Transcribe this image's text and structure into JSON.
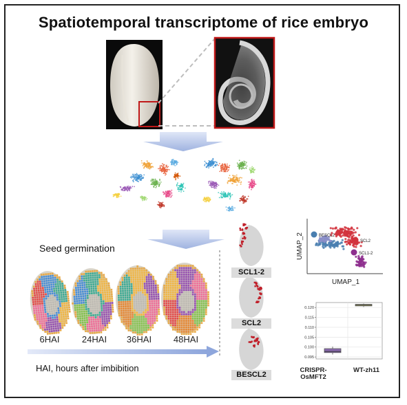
{
  "title": "Spatiotemporal transcriptome of rice embryo",
  "section_label": "Seed germination",
  "time_points": [
    "6HAI",
    "24HAI",
    "36HAI",
    "48HAI"
  ],
  "legend_note": "HAI, hours after imbibition",
  "spatial_panels": [
    "SCL1-2",
    "SCL2",
    "BESCL2"
  ],
  "umap": {
    "xlabel": "UMAP_1",
    "ylabel": "UMAP_2",
    "clusters": [
      {
        "name": "BESCL2",
        "color": "#4a7fb0"
      },
      {
        "name": "SCL2",
        "color": "#d2333d"
      },
      {
        "name": "SCL1-2",
        "color": "#8e2f8e"
      }
    ]
  },
  "chart_data": {
    "type": "box",
    "categories": [
      "CRISPR-\nOsMFT2",
      "WT-zh11"
    ],
    "category_lines": [
      [
        "CRISPR-",
        "OsMFT2"
      ],
      [
        "WT-zh11"
      ]
    ],
    "yticks": [
      0.095,
      0.1,
      0.105,
      0.11,
      0.115,
      0.12
    ],
    "ytick_labels": [
      "0.095",
      "0.100",
      "0.105",
      "0.110",
      "0.115",
      "0.120"
    ],
    "ylim": [
      0.094,
      0.1225
    ],
    "series": [
      {
        "category": "CRISPR-\nOsMFT2",
        "q1": 0.0972,
        "median": 0.0978,
        "q3": 0.0992,
        "min": 0.0962,
        "max": 0.1002,
        "color": "#8a6ab0"
      },
      {
        "category": "WT-zh11",
        "q1": 0.1208,
        "median": 0.1212,
        "q3": 0.1216,
        "min": 0.1203,
        "max": 0.122,
        "color": "#d9d77a"
      }
    ],
    "grid": true
  },
  "colors": {
    "arrow": "#aebfe6",
    "highlight_box": "#c01818"
  }
}
